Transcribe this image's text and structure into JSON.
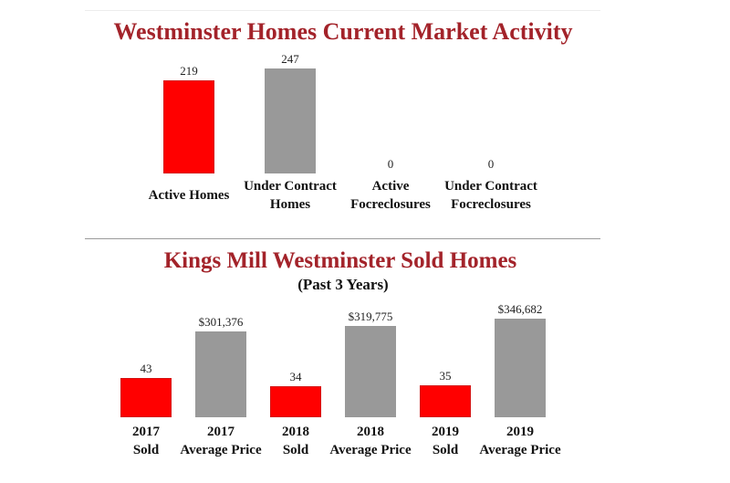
{
  "colors": {
    "title": "#a3232a",
    "active": "#ff0000",
    "contract": "#999999",
    "text": "#111111"
  },
  "chart_data": [
    {
      "type": "bar",
      "title": "Westminster Homes Current Market Activity",
      "subtitle": "",
      "categories": [
        [
          "Active Homes"
        ],
        [
          "Under Contract",
          "Homes"
        ],
        [
          "Active",
          "Focreclosures"
        ],
        [
          "Under Contract",
          "Focreclosures"
        ]
      ],
      "values": [
        219,
        247,
        0,
        0
      ],
      "value_labels": [
        "219",
        "247",
        "0",
        "0"
      ],
      "bar_colors": [
        "active",
        "contract",
        "active",
        "contract"
      ],
      "ylim": [
        0,
        247
      ],
      "xlabel": "",
      "ylabel": "",
      "grid": false,
      "legend": "none"
    },
    {
      "type": "bar",
      "title": "Kings Mill Westminster Sold Homes",
      "subtitle": "(Past 3 Years)",
      "categories": [
        [
          "2017",
          "Sold"
        ],
        [
          "2017",
          "Average Price"
        ],
        [
          "2018",
          "Sold"
        ],
        [
          "2018",
          "Average Price"
        ],
        [
          "2019",
          "Sold"
        ],
        [
          "2019",
          "Average Price"
        ]
      ],
      "values": [
        43,
        301376,
        34,
        319775,
        35,
        346682
      ],
      "value_labels": [
        "43",
        "$301,376",
        "34",
        "$319,775",
        "35",
        "$346,682"
      ],
      "bar_colors": [
        "active",
        "contract",
        "active",
        "contract",
        "active",
        "contract"
      ],
      "scales": {
        "sold": {
          "indices": [
            0,
            2,
            4
          ],
          "ylim": [
            0,
            110
          ]
        },
        "price": {
          "indices": [
            1,
            3,
            5
          ],
          "ylim": [
            0,
            346682
          ]
        }
      },
      "xlabel": "",
      "ylabel": "",
      "grid": false,
      "legend": "none"
    }
  ]
}
